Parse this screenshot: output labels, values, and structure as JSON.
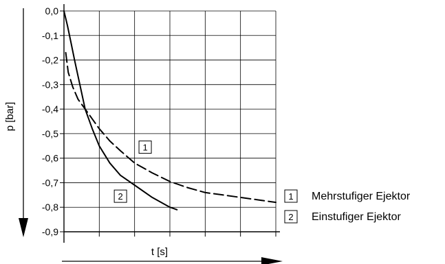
{
  "chart_data": {
    "type": "line",
    "title": "",
    "xlabel": "t [s]",
    "ylabel": "p [bar]",
    "ylim": [
      -0.9,
      0.0
    ],
    "y_ticks": [
      "0,0",
      "-0,1",
      "-0,2",
      "-0,3",
      "-0,4",
      "-0,5",
      "-0,6",
      "-0,7",
      "-0,8",
      "-0,9"
    ],
    "x_tick_count": 7,
    "x_range": [
      0,
      6
    ],
    "grid": true,
    "legend_position": "bottom-right",
    "series": [
      {
        "name": "Mehrstufiger Ejektor",
        "marker": "1",
        "style": "dashed",
        "x": [
          0.05,
          0.12,
          0.25,
          0.4,
          0.6,
          0.8,
          1.0,
          1.3,
          1.6,
          2.0,
          2.5,
          3.0,
          3.5,
          4.0,
          4.5,
          5.0,
          5.5,
          6.0
        ],
        "y": [
          -0.17,
          -0.25,
          -0.31,
          -0.36,
          -0.4,
          -0.44,
          -0.48,
          -0.53,
          -0.57,
          -0.62,
          -0.66,
          -0.695,
          -0.72,
          -0.74,
          -0.75,
          -0.76,
          -0.77,
          -0.78
        ]
      },
      {
        "name": "Einstufiger Ejektor",
        "marker": "2",
        "style": "solid",
        "x": [
          0.0,
          0.1,
          0.2,
          0.3,
          0.45,
          0.6,
          0.8,
          1.0,
          1.3,
          1.6,
          2.0,
          2.5,
          3.0,
          3.2
        ],
        "y": [
          0.0,
          -0.06,
          -0.13,
          -0.2,
          -0.3,
          -0.4,
          -0.48,
          -0.55,
          -0.62,
          -0.67,
          -0.71,
          -0.76,
          -0.8,
          -0.81
        ]
      }
    ],
    "annotations": [
      {
        "label": "1",
        "x": 2.3,
        "y": -0.555
      },
      {
        "label": "2",
        "x": 1.6,
        "y": -0.755
      }
    ]
  },
  "legend": {
    "items": [
      {
        "marker": "1",
        "label": "Mehrstufiger Ejektor"
      },
      {
        "marker": "2",
        "label": "Einstufiger Ejektor"
      }
    ]
  }
}
